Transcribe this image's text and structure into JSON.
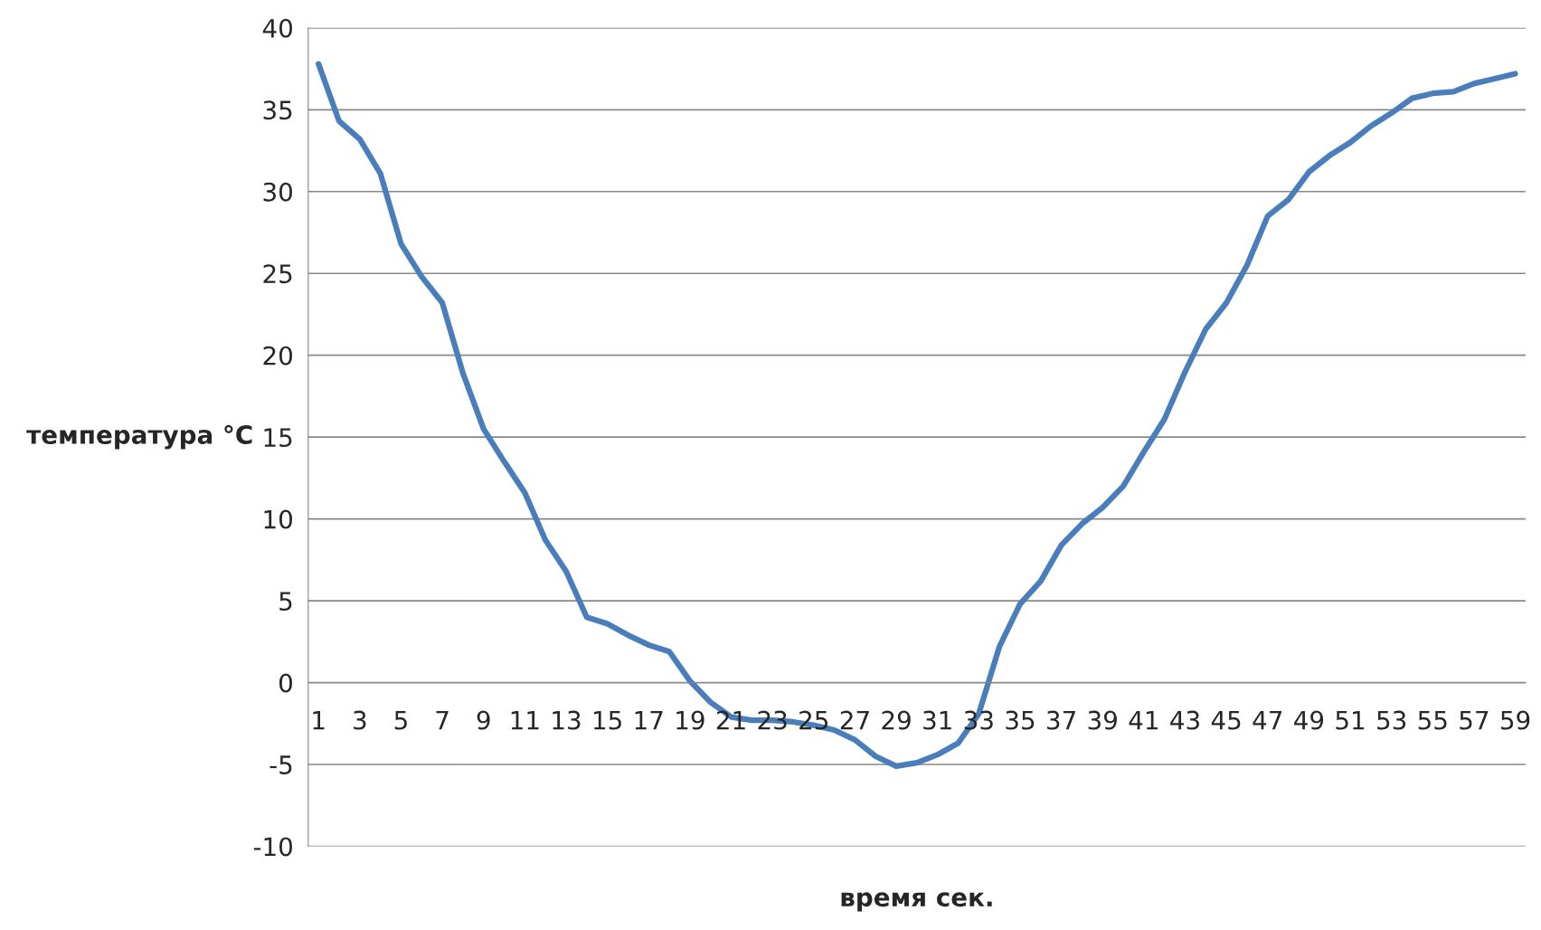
{
  "chart_data": {
    "type": "line",
    "xlabel": "время сек.",
    "ylabel": "температура °C",
    "categories": [
      "1",
      null,
      "3",
      null,
      "5",
      null,
      "7",
      null,
      "9",
      null,
      "11",
      null,
      "13",
      null,
      "15",
      null,
      "17",
      null,
      "19",
      null,
      "21",
      null,
      "23",
      null,
      "25",
      null,
      "27",
      null,
      "29",
      null,
      "31",
      null,
      "33",
      null,
      "35",
      null,
      "37",
      null,
      "39",
      null,
      "41",
      null,
      "43",
      null,
      "45",
      null,
      "47",
      null,
      "49",
      null,
      "51",
      null,
      "53",
      null,
      "55",
      null,
      "57",
      null,
      "59"
    ],
    "series": [
      {
        "color": "#4a7ebb",
        "values": [
          37.8,
          34.3,
          33.2,
          31.1,
          26.8,
          24.8,
          23.2,
          18.9,
          15.5,
          13.5,
          11.6,
          8.7,
          6.8,
          4.0,
          3.6,
          2.9,
          2.3,
          1.9,
          0.1,
          -1.2,
          -2.1,
          -2.3,
          -2.3,
          -2.4,
          -2.6,
          -2.9,
          -3.5,
          -4.5,
          -5.1,
          -4.9,
          -4.4,
          -3.7,
          -1.9,
          2.2,
          4.8,
          6.2,
          8.4,
          9.7,
          10.7,
          12.0,
          14.1,
          16.1,
          19.0,
          21.6,
          23.2,
          25.5,
          28.5,
          29.5,
          31.2,
          32.2,
          33.0,
          34.0,
          34.8,
          35.7,
          36.0,
          36.1,
          36.6,
          36.9,
          37.2
        ]
      }
    ],
    "ylim": [
      -10,
      40
    ],
    "yticks": [
      -10,
      -5,
      0,
      5,
      10,
      15,
      20,
      25,
      30,
      35,
      40
    ],
    "grid": "y",
    "legend": false,
    "marker": "none",
    "line_style": "solid"
  }
}
